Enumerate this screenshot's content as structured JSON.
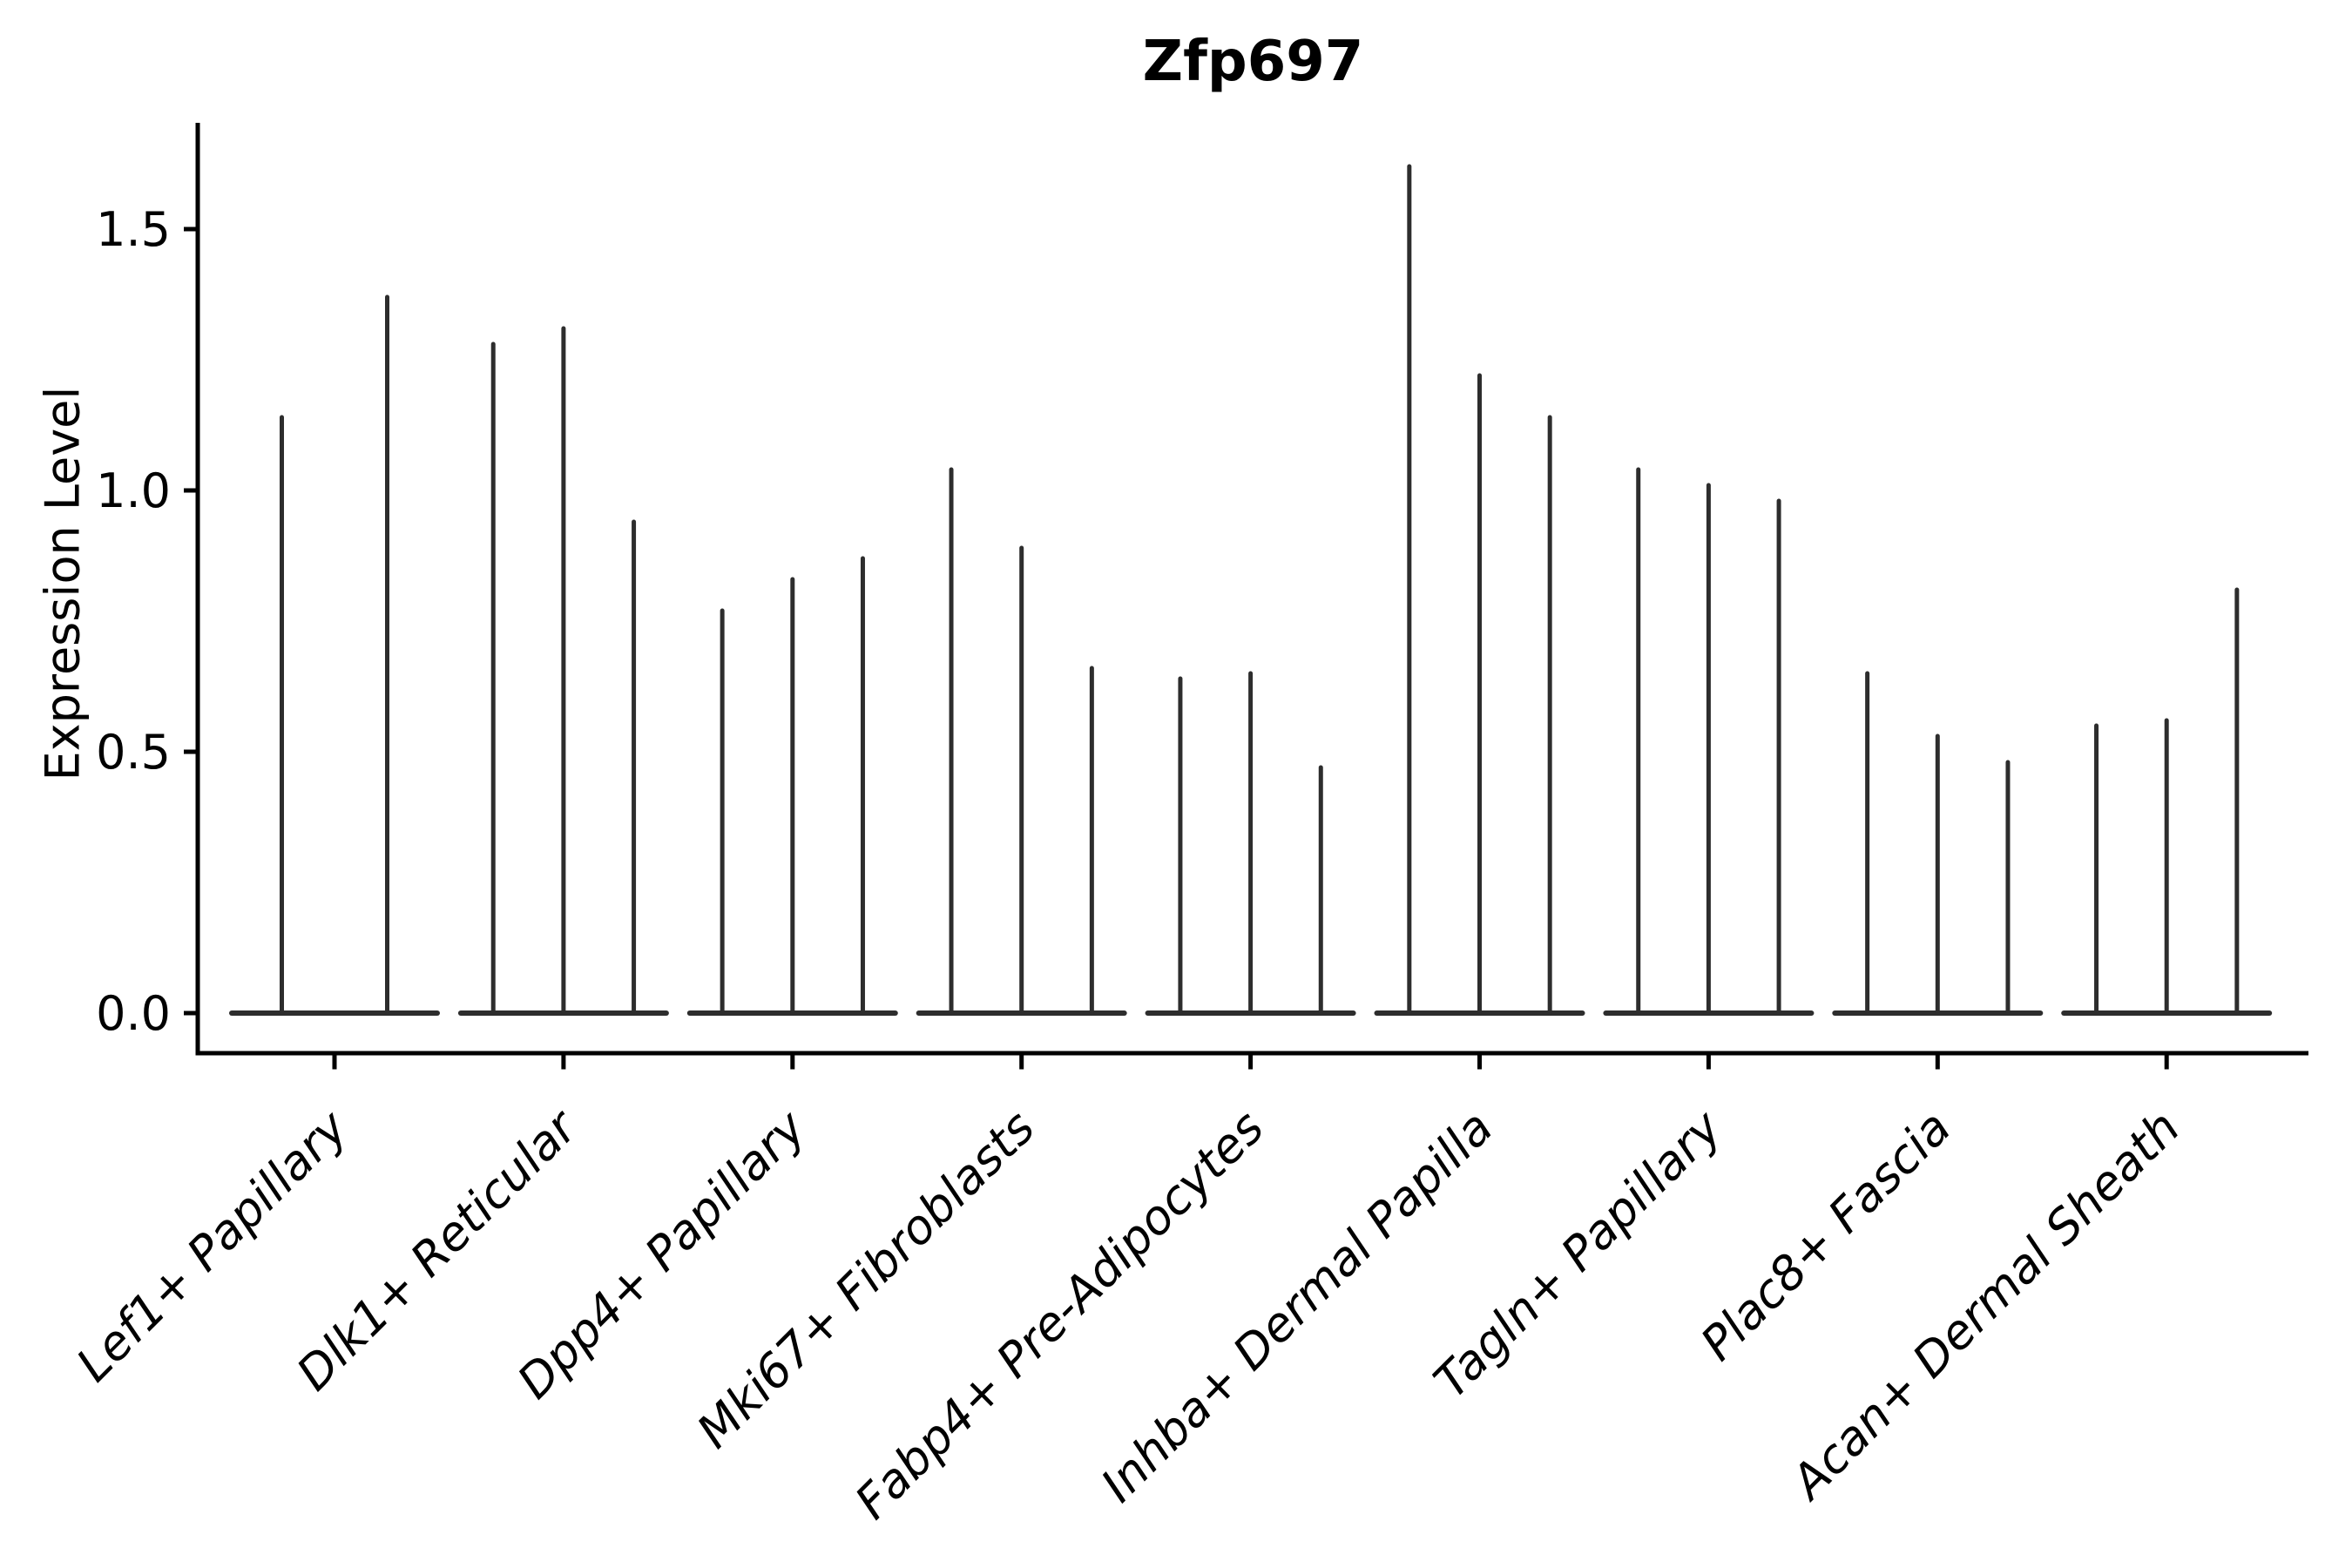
{
  "page": {
    "background_color": "#ffffff"
  },
  "chart_data": {
    "type": "violin",
    "title": "Zfp697",
    "xlabel": "",
    "ylabel": "Expression Level",
    "ylim": [
      -0.08,
      1.7
    ],
    "y_ticks": [
      0.0,
      0.5,
      1.0,
      1.5
    ],
    "y_tick_labels": [
      "0.0",
      "0.5",
      "1.0",
      "1.5"
    ],
    "x_tick_rotation_deg": 45,
    "x_tick_style": "italic",
    "grid": false,
    "legend": "none",
    "violin_color": "#2d2d2d",
    "axis_color": "#000000",
    "categories": [
      "Lef1+ Papillary",
      "Dlk1+ Reticular",
      "Dpp4+ Papillary",
      "Mki67+ Fibroblasts",
      "Fabp4+ Pre-Adipocytes",
      "Inhba+ Dermal Papilla",
      "Tagln+ Papillary",
      "Plac8+ Fascia",
      "Acan+ Dermal Sheath"
    ],
    "groups": [
      {
        "category": "Lef1+ Papillary",
        "violin_max_expression": [
          1.14,
          1.37
        ]
      },
      {
        "category": "Dlk1+ Reticular",
        "violin_max_expression": [
          1.28,
          1.31,
          0.94
        ]
      },
      {
        "category": "Dpp4+ Papillary",
        "violin_max_expression": [
          0.77,
          0.83,
          0.87
        ]
      },
      {
        "category": "Mki67+ Fibroblasts",
        "violin_max_expression": [
          1.04,
          0.89,
          0.66
        ]
      },
      {
        "category": "Fabp4+ Pre-Adipocytes",
        "violin_max_expression": [
          0.64,
          0.65,
          0.47
        ]
      },
      {
        "category": "Inhba+ Dermal Papilla",
        "violin_max_expression": [
          1.62,
          1.22,
          1.14
        ]
      },
      {
        "category": "Tagln+ Papillary",
        "violin_max_expression": [
          1.04,
          1.01,
          0.98
        ]
      },
      {
        "category": "Plac8+ Fascia",
        "violin_max_expression": [
          0.65,
          0.53,
          0.48
        ]
      },
      {
        "category": "Acan+ Dermal Sheath",
        "violin_max_expression": [
          0.55,
          0.56,
          0.81
        ]
      }
    ],
    "baseline_note": "all violins have dense mass at expression 0 (flat body) with a thin spike up to the max expression value"
  }
}
